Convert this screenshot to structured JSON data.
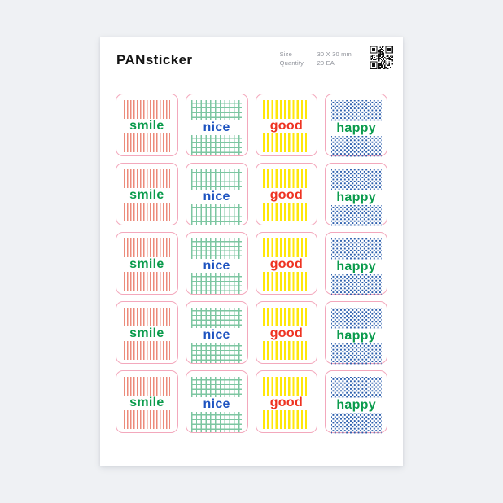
{
  "header": {
    "title": "PANsticker",
    "meta": [
      {
        "label": "Size",
        "value": "30 X 30 mm"
      },
      {
        "label": "Quantity",
        "value": "20 EA"
      }
    ],
    "qr_icon": "qr-code"
  },
  "sheet": {
    "rows": 5,
    "columns": [
      {
        "id": "smile",
        "label": "smile",
        "label_color": "#0a9b4c",
        "pattern": "stripes-thin",
        "pattern_color": "#ec8a7a"
      },
      {
        "id": "nice",
        "label": "nice",
        "label_color": "#1d53c0",
        "pattern": "grid",
        "pattern_color": "#7cc6a1"
      },
      {
        "id": "good",
        "label": "good",
        "label_color": "#ee3322",
        "pattern": "stripes-wide",
        "pattern_color": "#ffe70a"
      },
      {
        "id": "happy",
        "label": "happy",
        "label_color": "#0a9b4c",
        "pattern": "dots",
        "pattern_color": "#2c5fad"
      }
    ],
    "sticker_border_color": "#f3a8bc"
  },
  "colors": {
    "background": "#eff1f4",
    "page": "#ffffff",
    "title_text": "#141414",
    "meta_text": "#8f929a"
  }
}
